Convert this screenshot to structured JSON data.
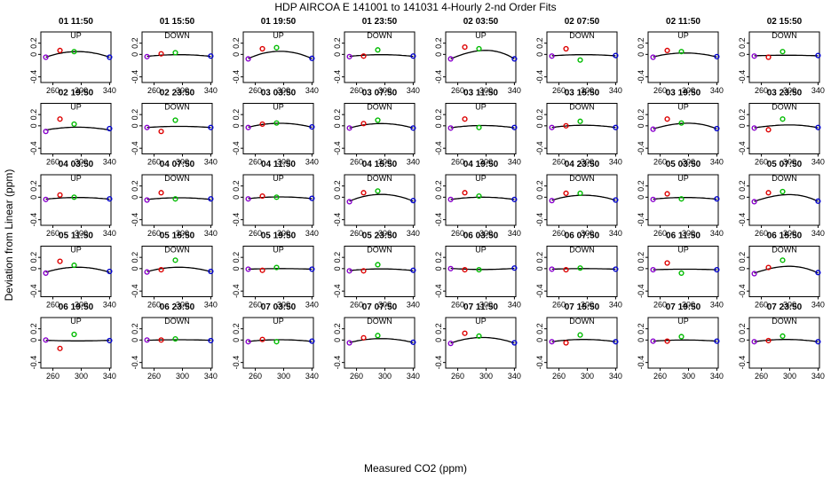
{
  "chart_data": {
    "type": "scatter",
    "title": "HDP   AIRCOA E   141001 to 141031   4-Hourly 2-nd Order Fits",
    "xlabel": "Measured CO2 (ppm)",
    "ylabel": "Deviation from Linear (ppm)",
    "xlim": [
      243,
      342
    ],
    "ylim": [
      -0.5,
      0.4
    ],
    "xticks": [
      260,
      300,
      340
    ],
    "xtick_labels": [
      "260",
      "300",
      "340"
    ],
    "yticks": [
      -0.4,
      0.0,
      0.2
    ],
    "ytick_labels": [
      "-0.4",
      "0",
      "0.2"
    ],
    "point_x": [
      250,
      270,
      290,
      340
    ],
    "point_colors": [
      "#8800cc",
      "#dd0000",
      "#00bb00",
      "#0000cc"
    ],
    "curve_color": "#000000",
    "panels": [
      {
        "label": "01 11:50",
        "dir": "UP",
        "a": 0.1,
        "b": 0.0,
        "c": -0.55,
        "pts": [
          -0.05,
          0.07,
          0.05,
          -0.05
        ]
      },
      {
        "label": "01 15:50",
        "dir": "DOWN",
        "a": 0.03,
        "b": 0.0,
        "c": -0.2,
        "pts": [
          -0.04,
          0.01,
          0.03,
          -0.03
        ]
      },
      {
        "label": "01 19:50",
        "dir": "UP",
        "a": 0.13,
        "b": 0.0,
        "c": -0.7,
        "pts": [
          -0.08,
          0.1,
          0.12,
          -0.07
        ]
      },
      {
        "label": "01 23:50",
        "dir": "DOWN",
        "a": 0.03,
        "b": 0.0,
        "c": -0.25,
        "pts": [
          -0.04,
          -0.03,
          0.08,
          -0.03
        ]
      },
      {
        "label": "02 03:50",
        "dir": "UP",
        "a": 0.15,
        "b": 0.2,
        "c": -1.0,
        "pts": [
          -0.08,
          0.13,
          0.1,
          -0.08
        ]
      },
      {
        "label": "02 07:50",
        "dir": "DOWN",
        "a": 0.02,
        "b": 0.0,
        "c": -0.15,
        "pts": [
          -0.03,
          0.1,
          -0.1,
          -0.02
        ]
      },
      {
        "label": "02 11:50",
        "dir": "UP",
        "a": 0.07,
        "b": 0.0,
        "c": -0.4,
        "pts": [
          -0.05,
          0.07,
          0.05,
          -0.04
        ]
      },
      {
        "label": "02 15:50",
        "dir": "DOWN",
        "a": 0.01,
        "b": 0.0,
        "c": -0.1,
        "pts": [
          -0.03,
          -0.05,
          0.05,
          -0.02
        ]
      },
      {
        "label": "02 19:50",
        "dir": "UP",
        "a": 0.05,
        "b": 0.0,
        "c": -0.4,
        "pts": [
          -0.1,
          0.12,
          0.03,
          -0.05
        ]
      },
      {
        "label": "02 23:50",
        "dir": "DOWN",
        "a": 0.02,
        "b": 0.0,
        "c": -0.2,
        "pts": [
          -0.03,
          -0.1,
          0.1,
          -0.03
        ]
      },
      {
        "label": "03 03:50",
        "dir": "UP",
        "a": 0.07,
        "b": 0.0,
        "c": -0.45,
        "pts": [
          -0.03,
          0.03,
          0.05,
          -0.02
        ]
      },
      {
        "label": "03 07:50",
        "dir": "DOWN",
        "a": 0.08,
        "b": 0.0,
        "c": -0.45,
        "pts": [
          -0.04,
          0.04,
          0.1,
          -0.04
        ]
      },
      {
        "label": "03 11:50",
        "dir": "UP",
        "a": 0.04,
        "b": 0.0,
        "c": -0.3,
        "pts": [
          -0.04,
          0.12,
          -0.03,
          -0.03
        ]
      },
      {
        "label": "03 15:50",
        "dir": "DOWN",
        "a": 0.04,
        "b": 0.0,
        "c": -0.3,
        "pts": [
          -0.03,
          0.0,
          0.08,
          -0.03
        ]
      },
      {
        "label": "03 19:50",
        "dir": "UP",
        "a": 0.1,
        "b": 0.2,
        "c": -0.6,
        "pts": [
          -0.06,
          0.12,
          0.05,
          -0.05
        ]
      },
      {
        "label": "03 23:50",
        "dir": "DOWN",
        "a": 0.05,
        "b": 0.2,
        "c": -0.4,
        "pts": [
          -0.04,
          -0.07,
          0.12,
          -0.03
        ]
      },
      {
        "label": "04 03:50",
        "dir": "UP",
        "a": 0.03,
        "b": 0.0,
        "c": -0.25,
        "pts": [
          -0.04,
          0.04,
          0.0,
          -0.03
        ]
      },
      {
        "label": "04 07:50",
        "dir": "DOWN",
        "a": 0.03,
        "b": 0.0,
        "c": -0.2,
        "pts": [
          -0.05,
          0.08,
          -0.03,
          -0.03
        ]
      },
      {
        "label": "04 11:50",
        "dir": "UP",
        "a": 0.03,
        "b": 0.0,
        "c": -0.2,
        "pts": [
          -0.03,
          0.02,
          0.0,
          -0.02
        ]
      },
      {
        "label": "04 15:50",
        "dir": "DOWN",
        "a": 0.12,
        "b": 0.0,
        "c": -0.7,
        "pts": [
          -0.08,
          0.08,
          0.11,
          -0.06
        ]
      },
      {
        "label": "04 19:50",
        "dir": "UP",
        "a": 0.04,
        "b": 0.0,
        "c": -0.3,
        "pts": [
          -0.04,
          0.08,
          0.02,
          -0.04
        ]
      },
      {
        "label": "04 23:50",
        "dir": "DOWN",
        "a": 0.09,
        "b": 0.0,
        "c": -0.5,
        "pts": [
          -0.06,
          0.07,
          0.07,
          -0.05
        ]
      },
      {
        "label": "05 03:50",
        "dir": "UP",
        "a": 0.03,
        "b": 0.0,
        "c": -0.25,
        "pts": [
          -0.04,
          0.06,
          -0.03,
          -0.03
        ]
      },
      {
        "label": "05 07:50",
        "dir": "DOWN",
        "a": 0.12,
        "b": 0.2,
        "c": -0.75,
        "pts": [
          -0.08,
          0.08,
          0.1,
          -0.07
        ]
      },
      {
        "label": "05 11:50",
        "dir": "UP",
        "a": 0.09,
        "b": 0.0,
        "c": -0.5,
        "pts": [
          -0.08,
          0.13,
          0.06,
          -0.05
        ]
      },
      {
        "label": "05 15:50",
        "dir": "DOWN",
        "a": 0.08,
        "b": 0.0,
        "c": -0.5,
        "pts": [
          -0.06,
          -0.02,
          0.15,
          -0.05
        ]
      },
      {
        "label": "05 19:50",
        "dir": "UP",
        "a": 0.01,
        "b": 0.0,
        "c": -0.05,
        "pts": [
          -0.01,
          -0.03,
          0.02,
          -0.01
        ]
      },
      {
        "label": "05 23:50",
        "dir": "DOWN",
        "a": 0.03,
        "b": 0.0,
        "c": -0.25,
        "pts": [
          -0.04,
          -0.04,
          0.07,
          -0.03
        ]
      },
      {
        "label": "06 03:50",
        "dir": "UP",
        "a": -0.02,
        "b": 0.0,
        "c": 0.05,
        "pts": [
          0.0,
          -0.02,
          -0.02,
          0.01
        ]
      },
      {
        "label": "06 07:50",
        "dir": "DOWN",
        "a": 0.01,
        "b": 0.0,
        "c": -0.05,
        "pts": [
          -0.01,
          -0.02,
          0.01,
          -0.01
        ]
      },
      {
        "label": "06 11:50",
        "dir": "UP",
        "a": 0.01,
        "b": 0.0,
        "c": -0.1,
        "pts": [
          -0.02,
          0.1,
          -0.08,
          -0.02
        ]
      },
      {
        "label": "06 15:50",
        "dir": "DOWN",
        "a": 0.12,
        "b": 0.2,
        "c": -0.8,
        "pts": [
          -0.09,
          0.02,
          0.15,
          -0.07
        ]
      },
      {
        "label": "06 19:50",
        "dir": "UP",
        "a": -0.01,
        "b": 0.0,
        "c": 0.05,
        "pts": [
          0.0,
          -0.15,
          0.1,
          -0.01
        ]
      },
      {
        "label": "06 23:50",
        "dir": "DOWN",
        "a": 0.01,
        "b": 0.0,
        "c": -0.05,
        "pts": [
          0.0,
          0.0,
          0.02,
          -0.01
        ]
      },
      {
        "label": "07 03:50",
        "dir": "UP",
        "a": 0.03,
        "b": 0.0,
        "c": -0.2,
        "pts": [
          -0.03,
          0.01,
          -0.03,
          -0.02
        ]
      },
      {
        "label": "07 07:50",
        "dir": "DOWN",
        "a": 0.07,
        "b": 0.0,
        "c": -0.45,
        "pts": [
          -0.05,
          0.04,
          0.08,
          -0.04
        ]
      },
      {
        "label": "07 11:50",
        "dir": "UP",
        "a": 0.1,
        "b": 0.0,
        "c": -0.6,
        "pts": [
          -0.06,
          0.12,
          0.07,
          -0.05
        ]
      },
      {
        "label": "07 15:50",
        "dir": "DOWN",
        "a": 0.04,
        "b": 0.0,
        "c": -0.25,
        "pts": [
          -0.03,
          -0.05,
          0.09,
          -0.03
        ]
      },
      {
        "label": "07 19:50",
        "dir": "UP",
        "a": 0.02,
        "b": 0.0,
        "c": -0.15,
        "pts": [
          -0.02,
          -0.02,
          0.06,
          -0.02
        ]
      },
      {
        "label": "07 23:50",
        "dir": "DOWN",
        "a": 0.04,
        "b": 0.0,
        "c": -0.25,
        "pts": [
          -0.03,
          -0.01,
          0.07,
          -0.03
        ]
      }
    ]
  }
}
